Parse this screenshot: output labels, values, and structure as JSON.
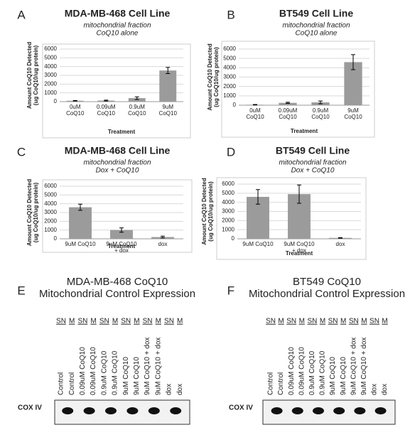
{
  "chart_data": [
    {
      "type": "bar",
      "panel_label": "A",
      "title": "MDA-MB-468 Cell Line",
      "subtitle": [
        "mitochondrial fraction",
        "CoQ10 alone"
      ],
      "ylabel": [
        "Amount CoQ10 Detected",
        "(ug CoQ10/ug protein)"
      ],
      "xlabel": "Treatment",
      "categories": [
        "0uM CoQ10",
        "0.09uM CoQ10",
        "0.9uM CoQ10",
        "9uM CoQ10"
      ],
      "values": [
        100,
        120,
        400,
        3550
      ],
      "errors": [
        30,
        50,
        150,
        350
      ],
      "color": "#9b9b9b",
      "ylim": [
        0,
        6000
      ],
      "yticks": [
        0,
        1000,
        2000,
        3000,
        4000,
        5000,
        6000
      ],
      "grid": true
    },
    {
      "type": "bar",
      "panel_label": "B",
      "title": "BT549 Cell Line",
      "subtitle": [
        "mitochondrial fraction",
        "CoQ10 alone"
      ],
      "ylabel": [
        "Amount CoQ10 Detected",
        "(ug CoQ10/ug protein)"
      ],
      "xlabel": "Treatment",
      "categories": [
        "0uM CoQ10",
        "0.09uM CoQ10",
        "0.9uM CoQ10",
        "9uM CoQ10"
      ],
      "values": [
        50,
        250,
        300,
        4600
      ],
      "errors": [
        30,
        60,
        150,
        800
      ],
      "color": "#9b9b9b",
      "ylim": [
        0,
        6000
      ],
      "yticks": [
        0,
        1000,
        2000,
        3000,
        4000,
        5000,
        6000
      ],
      "grid": true
    },
    {
      "type": "bar",
      "panel_label": "C",
      "title": "MDA-MB-468 Cell Line",
      "subtitle": [
        "mitochondrial fraction",
        "Dox + CoQ10"
      ],
      "ylabel": [
        "Amount CoQ10 Detected",
        "(ug CoQ10/ug protein)"
      ],
      "xlabel": "Treatment",
      "categories": [
        "9uM CoQ10",
        "9uM CoQ10 + dox",
        "dox"
      ],
      "values": [
        3600,
        1000,
        200
      ],
      "errors": [
        350,
        250,
        100
      ],
      "color": "#9b9b9b",
      "ylim": [
        0,
        6000
      ],
      "yticks": [
        0,
        1000,
        2000,
        3000,
        4000,
        5000,
        6000
      ],
      "grid": true
    },
    {
      "type": "bar",
      "panel_label": "D",
      "title": "BT549 Cell Line",
      "subtitle": [
        "mitochondrial fraction",
        "Dox + CoQ10"
      ],
      "ylabel": [
        "Amount CoQ10 Detected",
        "(ug CoQ10/ug protein)"
      ],
      "xlabel": "Treatment",
      "categories": [
        "9uM CoQ10",
        "9uM CoQ10 + dox",
        "dox"
      ],
      "values": [
        4600,
        4900,
        100
      ],
      "errors": [
        800,
        1000,
        30
      ],
      "color": "#9b9b9b",
      "ylim": [
        0,
        6000
      ],
      "yticks": [
        0,
        1000,
        2000,
        3000,
        4000,
        5000,
        6000
      ],
      "grid": true
    }
  ],
  "blots": [
    {
      "panel_label": "E",
      "title": [
        "MDA-MB-468 CoQ10",
        "Mitochondrial Control Expression"
      ],
      "fractions": [
        "SN",
        "M",
        "SN",
        "M",
        "SN",
        "M",
        "SN",
        "M",
        "SN",
        "M",
        "SN",
        "M"
      ],
      "lanes": [
        "Control",
        "Control",
        "0.09uM CoQ10",
        "0.09uM CoQ10",
        "0.9uM CoQ10",
        "0.9uM CoQ10",
        "9uM CoQ10",
        "9uM CoQ10",
        "9uM CoQ10 + dox",
        "9uM CoQ10 + dox",
        "dox",
        "dox"
      ],
      "row_label": "COX IV"
    },
    {
      "panel_label": "F",
      "title": [
        "BT549 CoQ10",
        "Mitochondrial Control Expression"
      ],
      "fractions": [
        "SN",
        "M",
        "SN",
        "M",
        "SN",
        "M",
        "SN",
        "M",
        "SN",
        "M",
        "SN",
        "M"
      ],
      "lanes": [
        "Control",
        "Control",
        "0.09uM CoQ10",
        "0.09uM CoQ10",
        "0.9uM CoQ10",
        "0.9uM CoQ10",
        "9uM CoQ10",
        "9uM CoQ10",
        "9uM CoQ10 + dox",
        "9uM CoQ10 + dox",
        "dox",
        "dox"
      ],
      "row_label": "COX IV"
    }
  ]
}
